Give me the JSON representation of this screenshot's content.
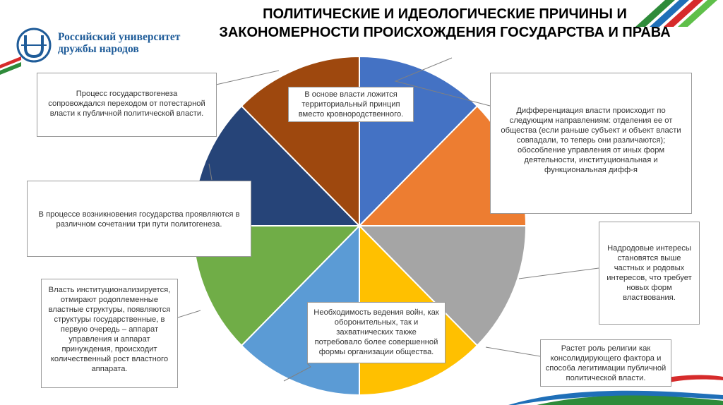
{
  "header": {
    "title": "ПОЛИТИЧЕСКИЕ И ИДЕОЛОГИЧЕСКИЕ ПРИЧИНЫ И ЗАКОНОМЕРНОСТИ ПРОИСХОЖДЕНИЯ ГОСУДАРСТВА И ПРАВА"
  },
  "logo": {
    "line1": "Российский университет",
    "line2": "дружбы народов"
  },
  "diagram": {
    "slice_colors": [
      "#4472c4",
      "#ed7d31",
      "#a5a5a5",
      "#ffc000",
      "#5b9bd5",
      "#70ad47",
      "#264478",
      "#9e480e"
    ],
    "callouts": {
      "top_left": "Процесс государствогенеза сопровождался переходом от потестарной власти к публичной политической власти.",
      "center_top": "В основе власти ложится территориальный принцип вместо кровнородственного.",
      "right_top": "Дифференциация власти происходит по следующим направлениям: отделения ее от общества (если раньше субъект и объект власти совпадали, то теперь они различаются); обособление управления от иных форм деятельности, институциональная и функциональная дифф-я",
      "left_middle": "В процессе возникновения государства проявляются в различном сочетании три пути политогенеза.",
      "right_middle": "Надродовые интересы становятся выше частных и родовых интересов, что требует новых форм властвования.",
      "left_bottom": "Власть институционализируется, отмирают родоплеменные властные структуры, появляются структуры государственные, в первую очередь – аппарат управления и аппарат принуждения, происходит количественный рост властного аппарата.",
      "center_bottom": "Необходимость ведения войн, как оборонительных, так и захватнических также потребовало более совершенной формы организации общества.",
      "right_bottom": "Растет роль религии как консолидирующего фактора и способа легитимации публичной политической власти."
    }
  }
}
